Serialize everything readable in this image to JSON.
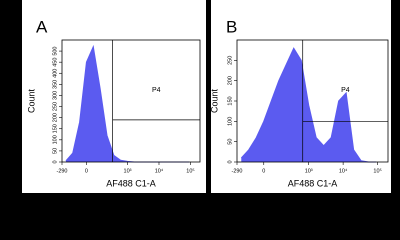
{
  "chart_data": [
    {
      "type": "histogram",
      "panel": "A",
      "x_label": "AF488 C1-A",
      "y_label": "Count",
      "x": [
        -213,
        -118,
        -52,
        0,
        52,
        118,
        213,
        363,
        605,
        1002,
        1654,
        2729,
        4501,
        7421,
        12233,
        20171,
        33252,
        54832,
        90402
      ],
      "series": [
        {
          "color": "#5b5bf0",
          "values": [
            5,
            40,
            180,
            450,
            520,
            330,
            120,
            30,
            8,
            3,
            0,
            0,
            0,
            0,
            0,
            0,
            0,
            0,
            0
          ]
        }
      ],
      "xscale": "biexponential",
      "xlim": [
        -290,
        200000
      ],
      "xticks": [
        -290,
        0,
        {
          "value": 1000,
          "label": "10³"
        },
        {
          "value": 10000,
          "label": "10⁴"
        },
        {
          "value": 100000,
          "label": "10⁵"
        }
      ],
      "ylim": [
        0,
        550
      ],
      "yticks": [
        0,
        50,
        100,
        150,
        200,
        250,
        300,
        350,
        400,
        450,
        500
      ],
      "gate": {
        "label": "P4",
        "x": 330,
        "y": 190
      }
    },
    {
      "type": "histogram",
      "panel": "B",
      "x_label": "AF488 C1-A",
      "y_label": "Count",
      "x": [
        -213,
        -118,
        -52,
        0,
        52,
        118,
        213,
        363,
        605,
        1002,
        1654,
        2729,
        4501,
        7421,
        12233,
        20171,
        33252,
        54832,
        90402
      ],
      "series": [
        {
          "color": "#5b5bf0",
          "values": [
            10,
            30,
            60,
            100,
            150,
            200,
            240,
            280,
            250,
            140,
            60,
            40,
            60,
            150,
            170,
            30,
            3,
            0,
            0
          ]
        }
      ],
      "xscale": "biexponential",
      "xlim": [
        -290,
        200000
      ],
      "xticks": [
        -290,
        0,
        {
          "value": 1000,
          "label": "10³"
        },
        {
          "value": 10000,
          "label": "10⁴"
        },
        {
          "value": 100000,
          "label": "10⁵"
        }
      ],
      "ylim": [
        0,
        300
      ],
      "yticks": [
        0,
        50,
        100,
        150,
        200,
        250
      ],
      "gate": {
        "label": "P4",
        "x": 670,
        "y": 100
      }
    }
  ]
}
